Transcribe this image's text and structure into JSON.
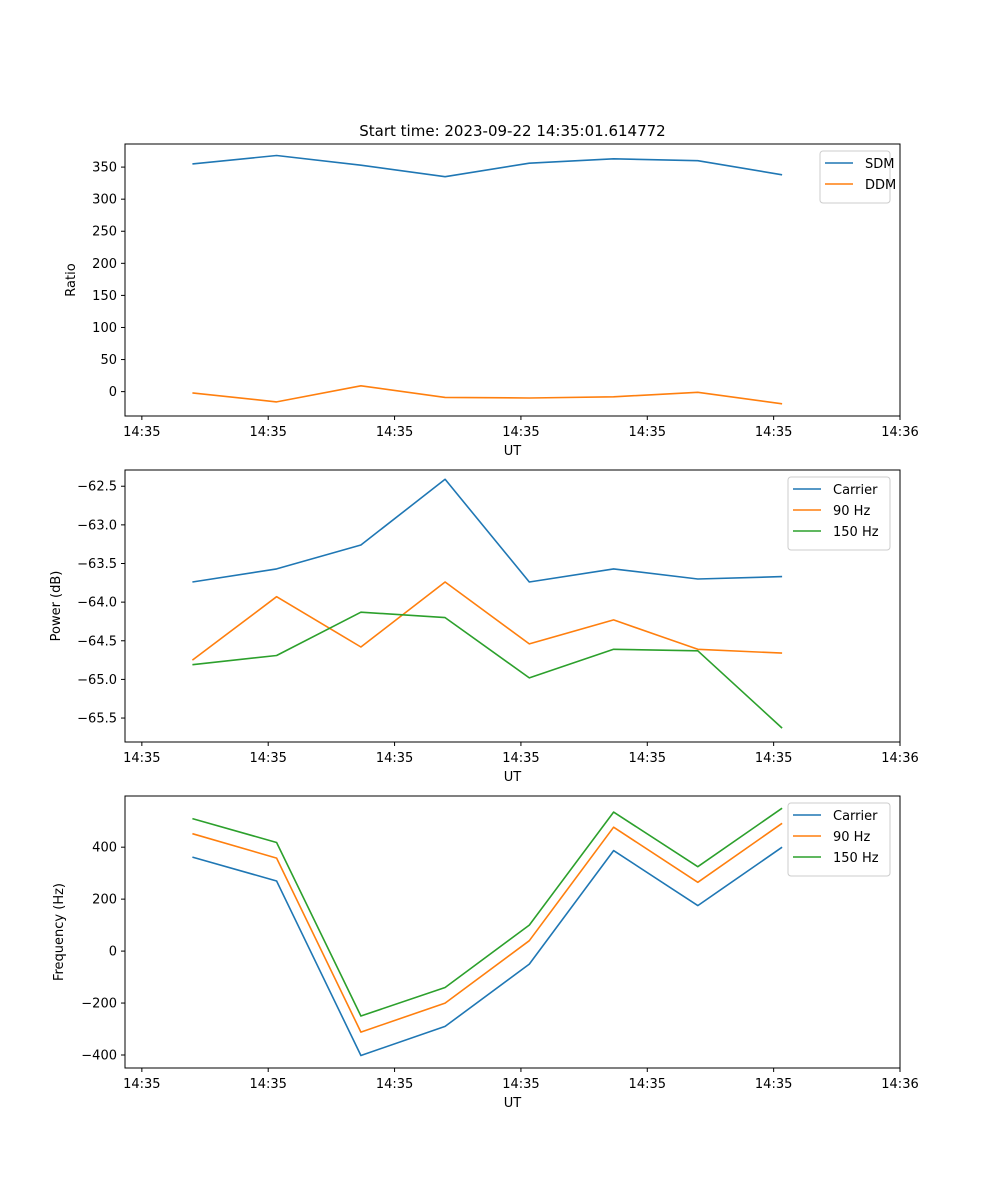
{
  "colors": {
    "blue": "#1f77b4",
    "orange": "#ff7f0e",
    "green": "#2ca02c",
    "axis": "#000000",
    "legend_border": "#cccccc"
  },
  "chart_data": [
    {
      "type": "line",
      "title": "Start time: 2023-09-22 14:35:01.614772",
      "xlabel": "UT",
      "ylabel": "Ratio",
      "xlim": [
        -0.1,
        4.5
      ],
      "ylim": [
        -38,
        386
      ],
      "x": [
        0.3,
        0.8,
        1.3,
        1.8,
        2.3,
        2.8,
        3.3,
        3.8
      ],
      "xticks": [
        0,
        0.75,
        1.5,
        2.25,
        3.0,
        3.75,
        4.5
      ],
      "xtick_labels": [
        "14:35",
        "14:35",
        "14:35",
        "14:35",
        "14:35",
        "14:35",
        "14:36"
      ],
      "yticks": [
        0,
        50,
        100,
        150,
        200,
        250,
        300,
        350
      ],
      "ytick_labels": [
        "0",
        "50",
        "100",
        "150",
        "200",
        "250",
        "300",
        "350"
      ],
      "legend_position": "top-right",
      "series": [
        {
          "name": "SDM",
          "color": "#1f77b4",
          "values": [
            355,
            368,
            353,
            335,
            356,
            363,
            360,
            338
          ]
        },
        {
          "name": "DDM",
          "color": "#ff7f0e",
          "values": [
            -2,
            -16,
            9,
            -9,
            -10,
            -8,
            -1,
            -19
          ]
        }
      ]
    },
    {
      "type": "line",
      "title": "",
      "xlabel": "UT",
      "ylabel": "Power (dB)",
      "xlim": [
        -0.1,
        4.5
      ],
      "ylim": [
        -65.81,
        -62.29
      ],
      "x": [
        0.3,
        0.8,
        1.3,
        1.8,
        2.3,
        2.8,
        3.3,
        3.8
      ],
      "xticks": [
        0,
        0.75,
        1.5,
        2.25,
        3.0,
        3.75,
        4.5
      ],
      "xtick_labels": [
        "14:35",
        "14:35",
        "14:35",
        "14:35",
        "14:35",
        "14:35",
        "14:36"
      ],
      "yticks": [
        -65.5,
        -65.0,
        -64.5,
        -64.0,
        -63.5,
        -63.0,
        -62.5
      ],
      "ytick_labels": [
        "−65.5",
        "−65.0",
        "−64.5",
        "−64.0",
        "−63.5",
        "−63.0",
        "−62.5"
      ],
      "legend_position": "top-right",
      "series": [
        {
          "name": "Carrier",
          "color": "#1f77b4",
          "values": [
            -63.74,
            -63.57,
            -63.26,
            -62.41,
            -63.74,
            -63.57,
            -63.7,
            -63.67
          ]
        },
        {
          "name": "90 Hz",
          "color": "#ff7f0e",
          "values": [
            -64.75,
            -63.93,
            -64.58,
            -63.74,
            -64.54,
            -64.23,
            -64.61,
            -64.66
          ]
        },
        {
          "name": "150 Hz",
          "color": "#2ca02c",
          "values": [
            -64.81,
            -64.69,
            -64.13,
            -64.2,
            -64.98,
            -64.61,
            -64.63,
            -65.63
          ]
        }
      ]
    },
    {
      "type": "line",
      "title": "",
      "xlabel": "UT",
      "ylabel": "Frequency (Hz)",
      "xlim": [
        -0.1,
        4.5
      ],
      "ylim": [
        -450,
        597
      ],
      "x": [
        0.3,
        0.8,
        1.3,
        1.8,
        2.3,
        2.8,
        3.3,
        3.8
      ],
      "xticks": [
        0,
        0.75,
        1.5,
        2.25,
        3.0,
        3.75,
        4.5
      ],
      "xtick_labels": [
        "14:35",
        "14:35",
        "14:35",
        "14:35",
        "14:35",
        "14:35",
        "14:36"
      ],
      "yticks": [
        -400,
        -200,
        0,
        200,
        400
      ],
      "ytick_labels": [
        "−400",
        "−200",
        "0",
        "200",
        "400"
      ],
      "legend_position": "top-right",
      "series": [
        {
          "name": "Carrier",
          "color": "#1f77b4",
          "values": [
            362,
            270,
            -402,
            -290,
            -50,
            387,
            175,
            400
          ]
        },
        {
          "name": "90 Hz",
          "color": "#ff7f0e",
          "values": [
            452,
            358,
            -312,
            -200,
            40,
            477,
            265,
            492
          ]
        },
        {
          "name": "150 Hz",
          "color": "#2ca02c",
          "values": [
            510,
            418,
            -250,
            -140,
            100,
            535,
            325,
            550
          ]
        }
      ]
    }
  ]
}
